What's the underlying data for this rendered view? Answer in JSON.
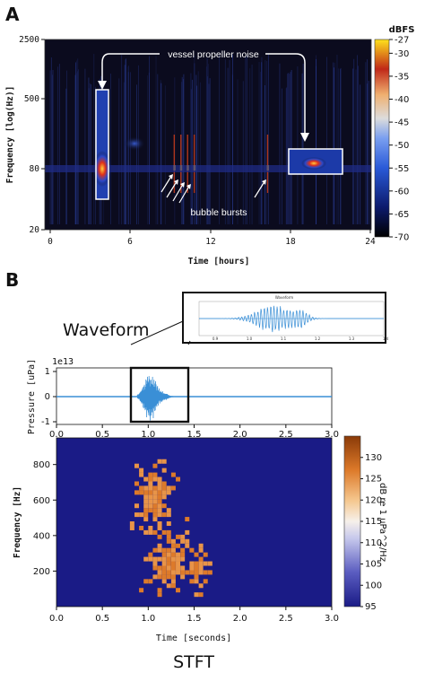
{
  "panel_labels": [
    "A",
    "B"
  ],
  "chart_data": [
    {
      "type": "heatmap",
      "panel": "A",
      "xlabel": "Time [hours]",
      "ylabel": "Frequency [log(Hz)]",
      "x_ticks": [
        0,
        6,
        12,
        18,
        24
      ],
      "y_ticks": [
        20,
        80,
        500,
        2500
      ],
      "y_scale": "log",
      "colorbar_title": "dBFS",
      "colorbar_ticks": [
        -27,
        -30,
        -35,
        -40,
        -45,
        -50,
        -55,
        -60,
        -65,
        -70
      ],
      "colorbar_range": [
        -70,
        -27
      ],
      "annotations": [
        "vessel propeller noise",
        "bubble bursts"
      ],
      "vessel_passages_hours": [
        {
          "start": 3.5,
          "end": 4.5
        },
        {
          "start": 18.0,
          "end": 22.0
        }
      ],
      "bubble_burst_times_hours": [
        9.3,
        9.8,
        10.3,
        10.8,
        16.3
      ],
      "colors": {
        "background": "#0b0b1e",
        "box": "#ffffff"
      }
    },
    {
      "type": "line",
      "panel": "B-waveform",
      "title": "Waveform",
      "ylabel": "Pressure [uPa]",
      "scale_label": "1e13",
      "x_ticks": [
        0.0,
        0.5,
        1.0,
        1.5,
        2.0,
        2.5,
        3.0
      ],
      "y_ticks": [
        -1,
        0,
        1
      ],
      "xlim": [
        0,
        3
      ],
      "ylim": [
        -1.2,
        1.2
      ],
      "signal_start_s": 0.88,
      "signal_end_s": 1.38,
      "highlight_range_s": [
        0.83,
        1.48
      ],
      "colors": {
        "line": "#3a8fd6"
      },
      "inset": {
        "title": "Waveform",
        "x_ticks": [
          "0.9",
          "1.0",
          "1.1",
          "1.2",
          "1.3",
          "1.4"
        ]
      }
    },
    {
      "type": "heatmap",
      "panel": "B-stft",
      "title": "STFT",
      "xlabel": "Time [seconds]",
      "ylabel": "Frequency [Hz]",
      "x_ticks": [
        0.0,
        0.5,
        1.0,
        1.5,
        2.0,
        2.5,
        3.0
      ],
      "y_ticks": [
        200,
        400,
        600,
        800
      ],
      "xlim": [
        0,
        3
      ],
      "ylim": [
        0,
        950
      ],
      "colorbar_label": "dB re 1 uPa^2/Hz",
      "colorbar_ticks": [
        95,
        100,
        105,
        110,
        115,
        120,
        125,
        130
      ],
      "colorbar_range": [
        95,
        135
      ],
      "colors": {
        "background": "#1a1b86",
        "energy": "#dd7a2a"
      }
    }
  ]
}
